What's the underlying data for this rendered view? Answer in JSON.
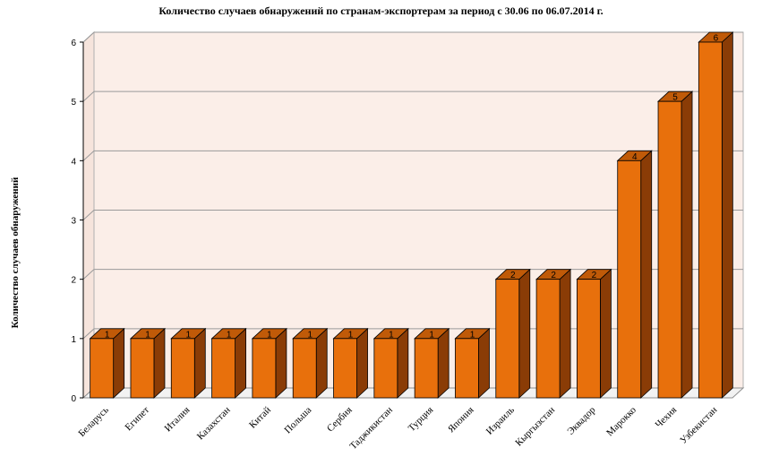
{
  "chart_data": {
    "type": "bar",
    "title": "Количество случаев обнаружений по странам-экспортерам за период с 30.06 по 06.07.2014 г.",
    "ylabel": "Количество случаев обнаружений",
    "xlabel": "",
    "categories": [
      "Беларусь",
      "Египет",
      "Италия",
      "Казахстан",
      "Китай",
      "Польша",
      "Сербия",
      "Таджикистан",
      "Турция",
      "Япония",
      "Израиль",
      "Кыргызстан",
      "Эквадор",
      "Марокко",
      "Чехия",
      "Узбекистан"
    ],
    "values": [
      1,
      1,
      1,
      1,
      1,
      1,
      1,
      1,
      1,
      1,
      2,
      2,
      2,
      4,
      5,
      6
    ],
    "ylim": [
      0,
      6
    ],
    "yticks": [
      0,
      1,
      2,
      3,
      4,
      5,
      6
    ],
    "grid": true,
    "legend": "none",
    "three_d": true,
    "data_labels": true
  },
  "colors": {
    "bar_front": "#e8700c",
    "bar_side": "#8a3c06",
    "bar_top": "#c05a08",
    "wall": "#fbeee8",
    "floor": "#f2f2f2",
    "gridline": "#9a9a9a"
  }
}
